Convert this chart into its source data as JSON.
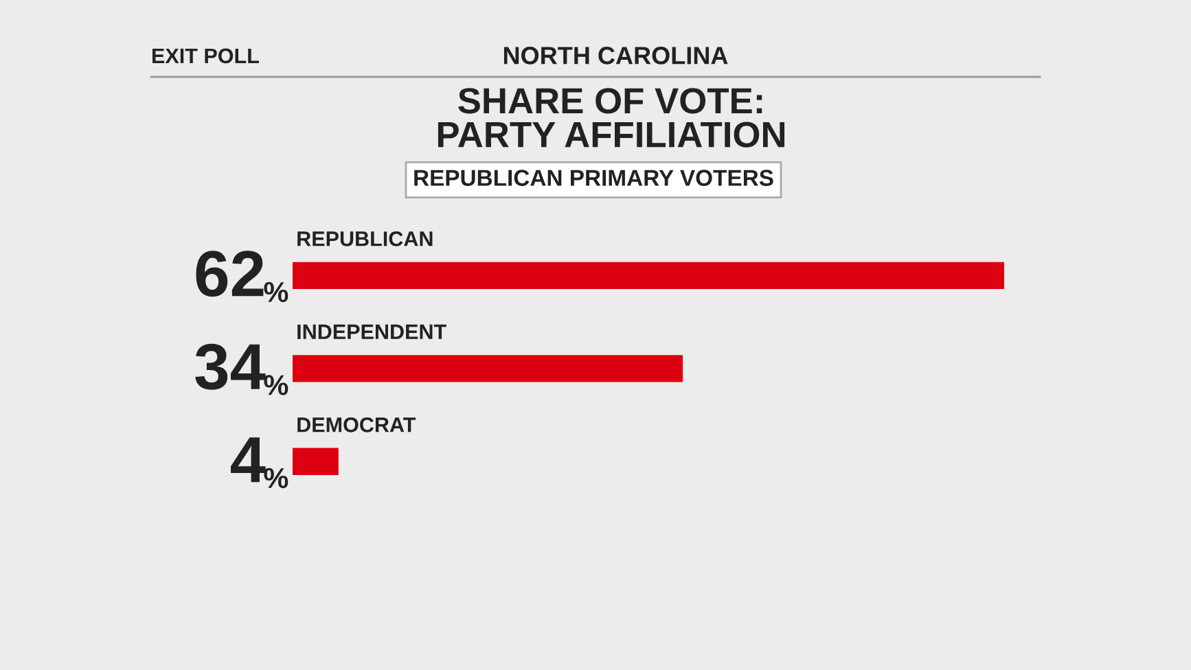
{
  "chart_data": {
    "type": "bar",
    "orientation": "horizontal",
    "title": "SHARE OF VOTE:\nPARTY AFFILIATION",
    "subtitle": "REPUBLICAN PRIMARY VOTERS",
    "annotations": [
      "EXIT POLL",
      "NORTH CAROLINA"
    ],
    "categories": [
      "REPUBLICAN",
      "INDEPENDENT",
      "DEMOCRAT"
    ],
    "values": [
      62,
      34,
      4
    ],
    "value_labels": [
      "62%",
      "34%",
      "4%"
    ],
    "color": "#dd0010"
  }
}
